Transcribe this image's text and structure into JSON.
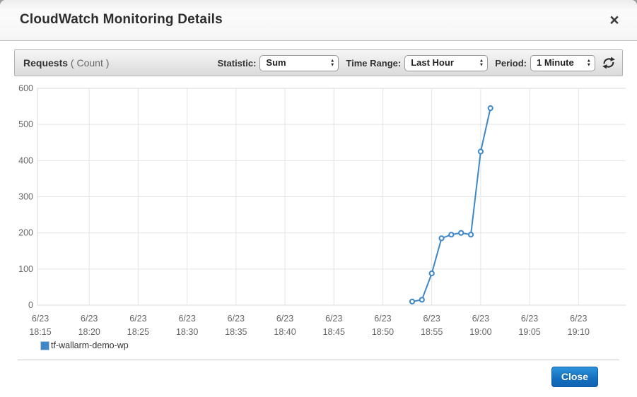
{
  "modal": {
    "title": "CloudWatch Monitoring Details",
    "close_icon": "×"
  },
  "toolbar": {
    "metric_name": "Requests",
    "metric_unit": " ( Count )",
    "statistic_label": "Statistic:",
    "statistic_value": "Sum",
    "time_range_label": "Time Range:",
    "time_range_value": "Last Hour",
    "period_label": "Period:",
    "period_value": "1 Minute"
  },
  "legend": {
    "series_label": "tf-wallarm-demo-wp"
  },
  "footer": {
    "close_label": "Close"
  },
  "colors": {
    "line": "#3e87c8",
    "grid": "#e4e4e4",
    "axis_text": "#666666",
    "legend_swatch": "#3e87c8"
  },
  "chart_data": {
    "type": "line",
    "title": "Requests (Count)",
    "xlabel": "",
    "ylabel": "",
    "ylim": [
      0,
      600
    ],
    "y_ticks": [
      0,
      100,
      200,
      300,
      400,
      500,
      600
    ],
    "x_tick_interval_min": 5,
    "x_tick_labels": [
      [
        "6/23",
        "18:15"
      ],
      [
        "6/23",
        "18:20"
      ],
      [
        "6/23",
        "18:25"
      ],
      [
        "6/23",
        "18:30"
      ],
      [
        "6/23",
        "18:35"
      ],
      [
        "6/23",
        "18:40"
      ],
      [
        "6/23",
        "18:45"
      ],
      [
        "6/23",
        "18:50"
      ],
      [
        "6/23",
        "18:55"
      ],
      [
        "6/23",
        "19:00"
      ],
      [
        "6/23",
        "19:05"
      ],
      [
        "6/23",
        "19:10"
      ]
    ],
    "grid": true,
    "legend_position": "bottom-left",
    "series": [
      {
        "name": "tf-wallarm-demo-wp",
        "points": [
          {
            "x": "18:53",
            "y": 10
          },
          {
            "x": "18:54",
            "y": 15
          },
          {
            "x": "18:55",
            "y": 88
          },
          {
            "x": "18:56",
            "y": 185
          },
          {
            "x": "18:57",
            "y": 195
          },
          {
            "x": "18:58",
            "y": 200
          },
          {
            "x": "18:59",
            "y": 195
          },
          {
            "x": "19:00",
            "y": 425
          },
          {
            "x": "19:01",
            "y": 545
          }
        ]
      }
    ]
  }
}
